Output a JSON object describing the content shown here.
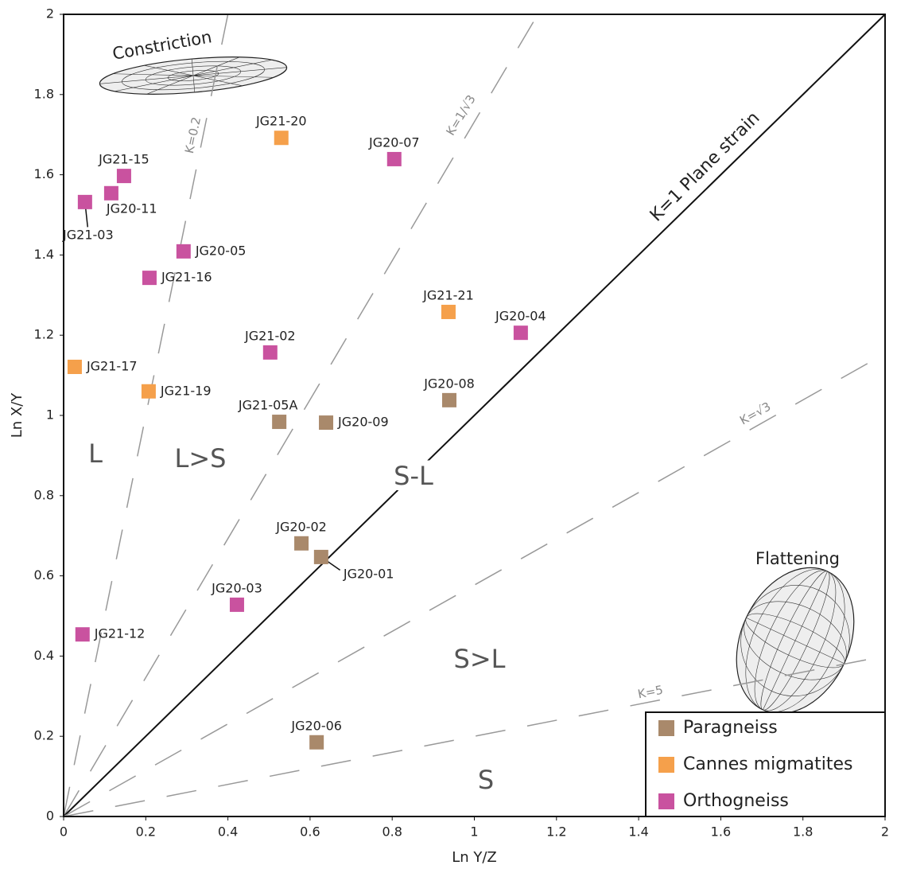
{
  "chart_data": {
    "type": "scatter",
    "xlabel": "Ln Y/Z",
    "ylabel": "Ln X/Y",
    "xlim": [
      0,
      2
    ],
    "ylim": [
      0,
      2
    ],
    "xticks": [
      0,
      0.2,
      0.4,
      0.6,
      0.8,
      1,
      1.2,
      1.4,
      1.6,
      1.8,
      2
    ],
    "yticks": [
      0,
      0.2,
      0.4,
      0.6,
      0.8,
      1,
      1.2,
      1.4,
      1.6,
      1.8,
      2
    ],
    "legend": "lower right",
    "series": [
      {
        "name": "Paragneiss",
        "color": "#a9896b",
        "labels": [
          "JG21-05A",
          "JG20-09",
          "JG20-08",
          "JG20-02",
          "JG20-01",
          "JG20-06"
        ],
        "x": [
          0.525,
          0.639,
          0.939,
          0.579,
          0.627,
          0.616
        ],
        "values": [
          0.984,
          0.982,
          1.038,
          0.681,
          0.647,
          0.185
        ]
      },
      {
        "name": "Cannes migmatites",
        "color": "#f5a04b",
        "labels": [
          "JG21-20",
          "JG21-21",
          "JG21-17",
          "JG21-19"
        ],
        "x": [
          0.53,
          0.937,
          0.027,
          0.207
        ],
        "values": [
          1.692,
          1.258,
          1.121,
          1.06
        ]
      },
      {
        "name": "Orthogneiss",
        "color": "#c9529f",
        "labels": [
          "JG21-15",
          "JG20-11",
          "JG21-03",
          "JG20-05",
          "JG21-16",
          "JG20-07",
          "JG21-02",
          "JG20-04",
          "JG20-03",
          "JG21-12"
        ],
        "x": [
          0.147,
          0.116,
          0.052,
          0.292,
          0.209,
          0.805,
          0.503,
          1.113,
          0.422,
          0.046
        ],
        "values": [
          1.597,
          1.554,
          1.532,
          1.409,
          1.343,
          1.639,
          1.157,
          1.206,
          0.528,
          0.454
        ]
      }
    ],
    "ref_lines": [
      {
        "label": "K=0.2",
        "slope": 5,
        "style": "dashed"
      },
      {
        "label": "K=1/√3",
        "slope": 1.732,
        "style": "dashed"
      },
      {
        "label": "K=1 Plane strain",
        "slope": 1,
        "style": "solid"
      },
      {
        "label": "K=√3",
        "slope": 0.577,
        "style": "dashed"
      },
      {
        "label": "K=5",
        "slope": 0.2,
        "style": "dashed"
      }
    ],
    "regions": [
      "L",
      "L>S",
      "S-L",
      "S>L",
      "S"
    ],
    "annotations": [
      "Constriction",
      "Flattening"
    ]
  }
}
